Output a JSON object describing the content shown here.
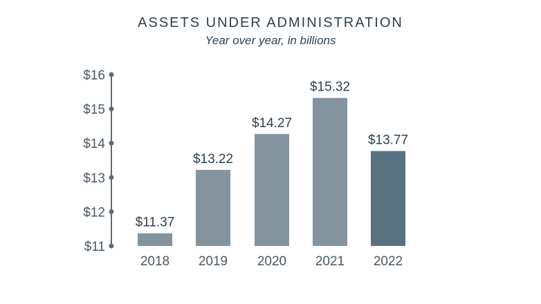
{
  "chart_data": {
    "type": "bar",
    "title": "ASSETS UNDER ADMINISTRATION",
    "subtitle": "Year over year, in billions",
    "categories": [
      "2018",
      "2019",
      "2020",
      "2021",
      "2022"
    ],
    "values": [
      11.37,
      13.22,
      14.27,
      15.32,
      13.77
    ],
    "value_labels": [
      "$11.37",
      "$13.22",
      "$14.27",
      "$15.32",
      "$13.77"
    ],
    "ylim": [
      11,
      16
    ],
    "yticks": [
      11,
      12,
      13,
      14,
      15,
      16
    ],
    "ytick_labels": [
      "$11",
      "$12",
      "$13",
      "$14",
      "$15",
      "$16"
    ],
    "bar_colors": [
      "#84949f",
      "#84949f",
      "#84949f",
      "#84949f",
      "#587282"
    ],
    "axis_color": "#5f6a72",
    "grid": false,
    "legend": "none"
  }
}
